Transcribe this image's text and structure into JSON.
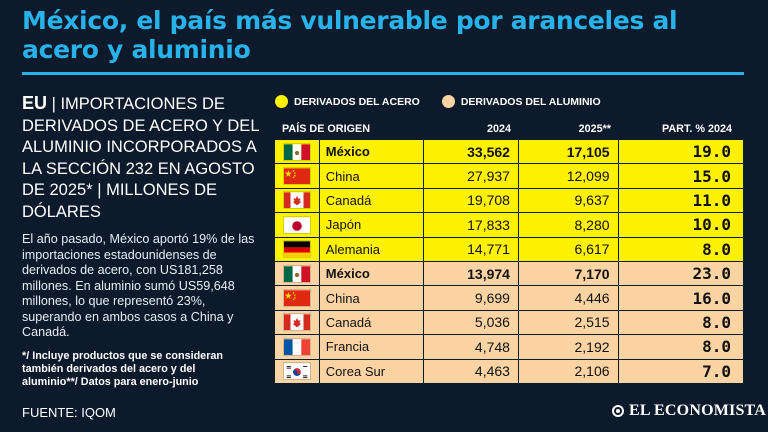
{
  "title": "México, el país más vulnerable por aranceles al acero y aluminio",
  "subtitle": {
    "lead": "EU",
    "text": " | IMPORTACIONES DE DERIVADOS DE ACERO Y DEL ALUMINIO INCORPORADOS A LA SECCIÓN 232 EN AGOSTO DE 2025* | MILLONES DE DÓLARES"
  },
  "body": "El año pasado, México aportó 19% de las importaciones estadounidenses de derivados de acero, con US181,258 millones. En aluminio sumó US59,648 millones, lo que representó 23%, superando en ambos casos a China y Canadá.",
  "note": "*/ Incluye productos que se consideran también derivados del acero y del aluminio**/ Datos para enero-junio",
  "source": "FUENTE: IQOM",
  "brand": "EL ECONOMISTA",
  "colors": {
    "accent": "#27b3ea",
    "steel": "#fef200",
    "aluminum": "#fcd3a3",
    "background": "#0c1a2b"
  },
  "chart_data": {
    "type": "table",
    "legend": [
      {
        "label": "DERIVADOS DEL ACERO",
        "color": "#fef200"
      },
      {
        "label": "DERIVADOS DEL ALUMINIO",
        "color": "#fcd3a3"
      }
    ],
    "columns": [
      "PAÍS DE ORIGEN",
      "2024",
      "2025**",
      "PART. % 2024"
    ],
    "rows": [
      {
        "group": "acero",
        "flag": "mexico-flag",
        "country": "México",
        "v2024": "33,562",
        "v2025": "17,105",
        "part": "19.0",
        "bold": true
      },
      {
        "group": "acero",
        "flag": "china-flag",
        "country": "China",
        "v2024": "27,937",
        "v2025": "12,099",
        "part": "15.0",
        "bold": false
      },
      {
        "group": "acero",
        "flag": "canada-flag",
        "country": "Canadá",
        "v2024": "19,708",
        "v2025": "9,637",
        "part": "11.0",
        "bold": false
      },
      {
        "group": "acero",
        "flag": "japan-flag",
        "country": "Japón",
        "v2024": "17,833",
        "v2025": "8,280",
        "part": "10.0",
        "bold": false
      },
      {
        "group": "acero",
        "flag": "germany-flag",
        "country": "Alemania",
        "v2024": "14,771",
        "v2025": "6,617",
        "part": "8.0",
        "bold": false
      },
      {
        "group": "aluminio",
        "flag": "mexico-flag",
        "country": "México",
        "v2024": "13,974",
        "v2025": "7,170",
        "part": "23.0",
        "bold": true
      },
      {
        "group": "aluminio",
        "flag": "china-flag",
        "country": "China",
        "v2024": "9,699",
        "v2025": "4,446",
        "part": "16.0",
        "bold": false
      },
      {
        "group": "aluminio",
        "flag": "canada-flag",
        "country": "Canadá",
        "v2024": "5,036",
        "v2025": "2,515",
        "part": "8.0",
        "bold": false
      },
      {
        "group": "aluminio",
        "flag": "france-flag",
        "country": "Francia",
        "v2024": "4,748",
        "v2025": "2,192",
        "part": "8.0",
        "bold": false
      },
      {
        "group": "aluminio",
        "flag": "south-korea-flag",
        "country": "Corea Sur",
        "v2024": "4,463",
        "v2025": "2,106",
        "part": "7.0",
        "bold": false
      }
    ]
  }
}
